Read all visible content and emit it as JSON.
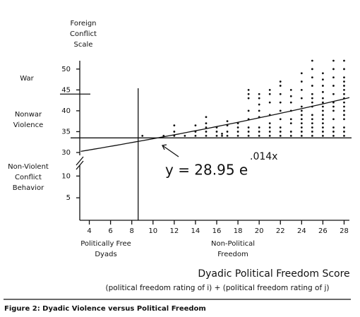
{
  "chart_data": {
    "type": "scatter",
    "title": "Dyadic Political Freedom Score",
    "subtitle": "(political freedom rating of i) + (political freedom rating of j)",
    "caption": "Figure 2: Dyadic Violence versus Political Freedom",
    "y_label": [
      "Foreign",
      "Conflict",
      "Scale"
    ],
    "region_labels": {
      "war": [
        "War"
      ],
      "nonwar": [
        "Nonwar",
        "Violence"
      ],
      "nonviolent": [
        "Non-Violent",
        "Conflict",
        "Behavior"
      ],
      "free": [
        "Politically Free",
        "Dyads"
      ],
      "nonfree": [
        "Non-Political",
        "Freedom"
      ]
    },
    "xlim": [
      3.1,
      28.5
    ],
    "xticks": [
      4,
      6,
      8,
      10,
      12,
      14,
      16,
      18,
      20,
      22,
      24,
      26,
      28
    ],
    "ylim": [
      0,
      52
    ],
    "y_break": [
      12,
      30
    ],
    "yticks": [
      5,
      10,
      30,
      35,
      40,
      45,
      50
    ],
    "reference_lines": {
      "y": [
        33.5,
        44
      ],
      "x": 8.6
    },
    "fit": {
      "a": 28.95,
      "b": 0.014,
      "xlim": [
        3.2,
        28.5
      ],
      "label": "y = 28.95 e",
      "exponent_label": ".014x"
    },
    "color": "#111",
    "x": [
      9,
      11,
      12,
      12,
      12,
      13,
      14,
      14,
      14,
      15,
      15,
      15,
      15,
      15,
      16,
      16,
      16,
      16.5,
      16.5,
      17,
      17,
      17,
      17,
      18,
      18,
      18,
      18,
      19,
      19,
      19,
      19,
      19,
      19,
      19,
      19,
      20,
      20,
      20,
      20,
      20,
      20,
      20,
      20,
      21,
      21,
      21,
      21,
      21,
      21,
      21,
      21,
      22,
      22,
      22,
      22,
      22,
      22,
      22,
      22,
      22,
      23,
      23,
      23,
      23,
      23,
      23,
      23,
      23,
      24,
      24,
      24,
      24,
      24,
      24,
      24,
      24,
      24,
      24,
      24,
      24,
      25,
      25,
      25,
      25,
      25,
      25,
      25,
      25,
      25,
      25,
      25,
      25,
      25,
      25,
      26,
      26,
      26,
      26,
      26,
      26,
      26,
      26,
      26,
      26,
      26,
      26,
      26,
      26,
      27,
      27,
      27,
      27,
      27,
      27,
      27,
      27,
      27,
      27,
      27,
      27,
      28,
      28,
      28,
      28,
      28,
      28,
      28,
      28,
      28,
      28,
      28,
      28,
      28,
      28,
      28,
      28
    ],
    "values": [
      34,
      34,
      34,
      35,
      36.5,
      34,
      34,
      35,
      36.5,
      34,
      35,
      36,
      37,
      38.5,
      34,
      35,
      36,
      34,
      34.5,
      34,
      35,
      36.5,
      37.5,
      34,
      35,
      36,
      37,
      34,
      35,
      36,
      38,
      40,
      43,
      44,
      45,
      34,
      35,
      36,
      38.5,
      40,
      41.5,
      43,
      44,
      34,
      35,
      36,
      37,
      39,
      42,
      44,
      45,
      34,
      35,
      36,
      38,
      40,
      42,
      44,
      46,
      47,
      34,
      35,
      37,
      38,
      40,
      42,
      43.5,
      45,
      34,
      35,
      36,
      37,
      38,
      39,
      40,
      41,
      43,
      45,
      47,
      49,
      34,
      35,
      36,
      37,
      38,
      39,
      41,
      42,
      43,
      44,
      46,
      48,
      50,
      52,
      34,
      35,
      36,
      37,
      38,
      39,
      40,
      41,
      42,
      43,
      44.5,
      46,
      47.5,
      49,
      34,
      35,
      36,
      38,
      40,
      41,
      42,
      44,
      46,
      48,
      50,
      52,
      34,
      35,
      36,
      38,
      39,
      40,
      41,
      42,
      43,
      44,
      45,
      46,
      47,
      48,
      50,
      52
    ]
  }
}
